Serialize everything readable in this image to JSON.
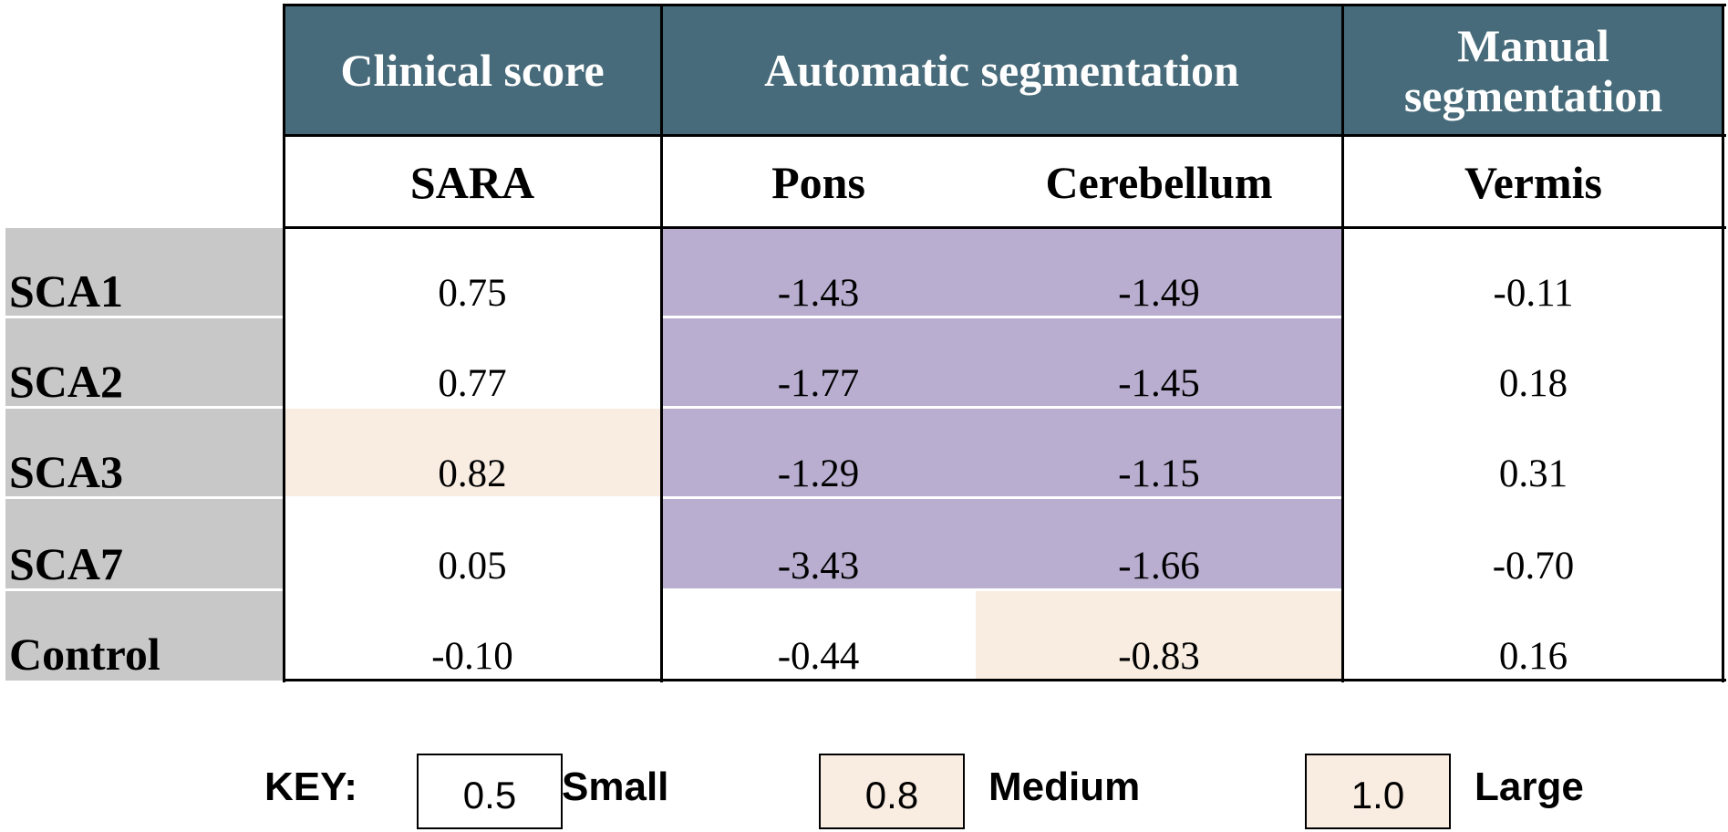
{
  "header": {
    "groups": [
      "Clinical score",
      "Automatic segmentation",
      "Manual segmentation"
    ],
    "columns": [
      "SARA",
      "Pons",
      "Cerebellum",
      "Vermis"
    ]
  },
  "table": {
    "rows": [
      [
        "SCA1",
        "0.75",
        "-1.43",
        "-1.49",
        "-0.11"
      ],
      [
        "SCA2",
        "0.77",
        "-1.77",
        "-1.45",
        "0.18"
      ],
      [
        "SCA3",
        "0.82",
        "-1.29",
        "-1.15",
        "0.31"
      ],
      [
        "SCA7",
        "0.05",
        "-3.43",
        "-1.66",
        "-0.70"
      ],
      [
        "Control",
        "-0.10",
        "-0.44",
        "-0.83",
        "0.16"
      ]
    ]
  },
  "key": {
    "label": "KEY:",
    "items": [
      [
        "0.5",
        "Small"
      ],
      [
        "0.8",
        "Medium"
      ],
      [
        "1.0",
        "Large"
      ]
    ]
  }
}
